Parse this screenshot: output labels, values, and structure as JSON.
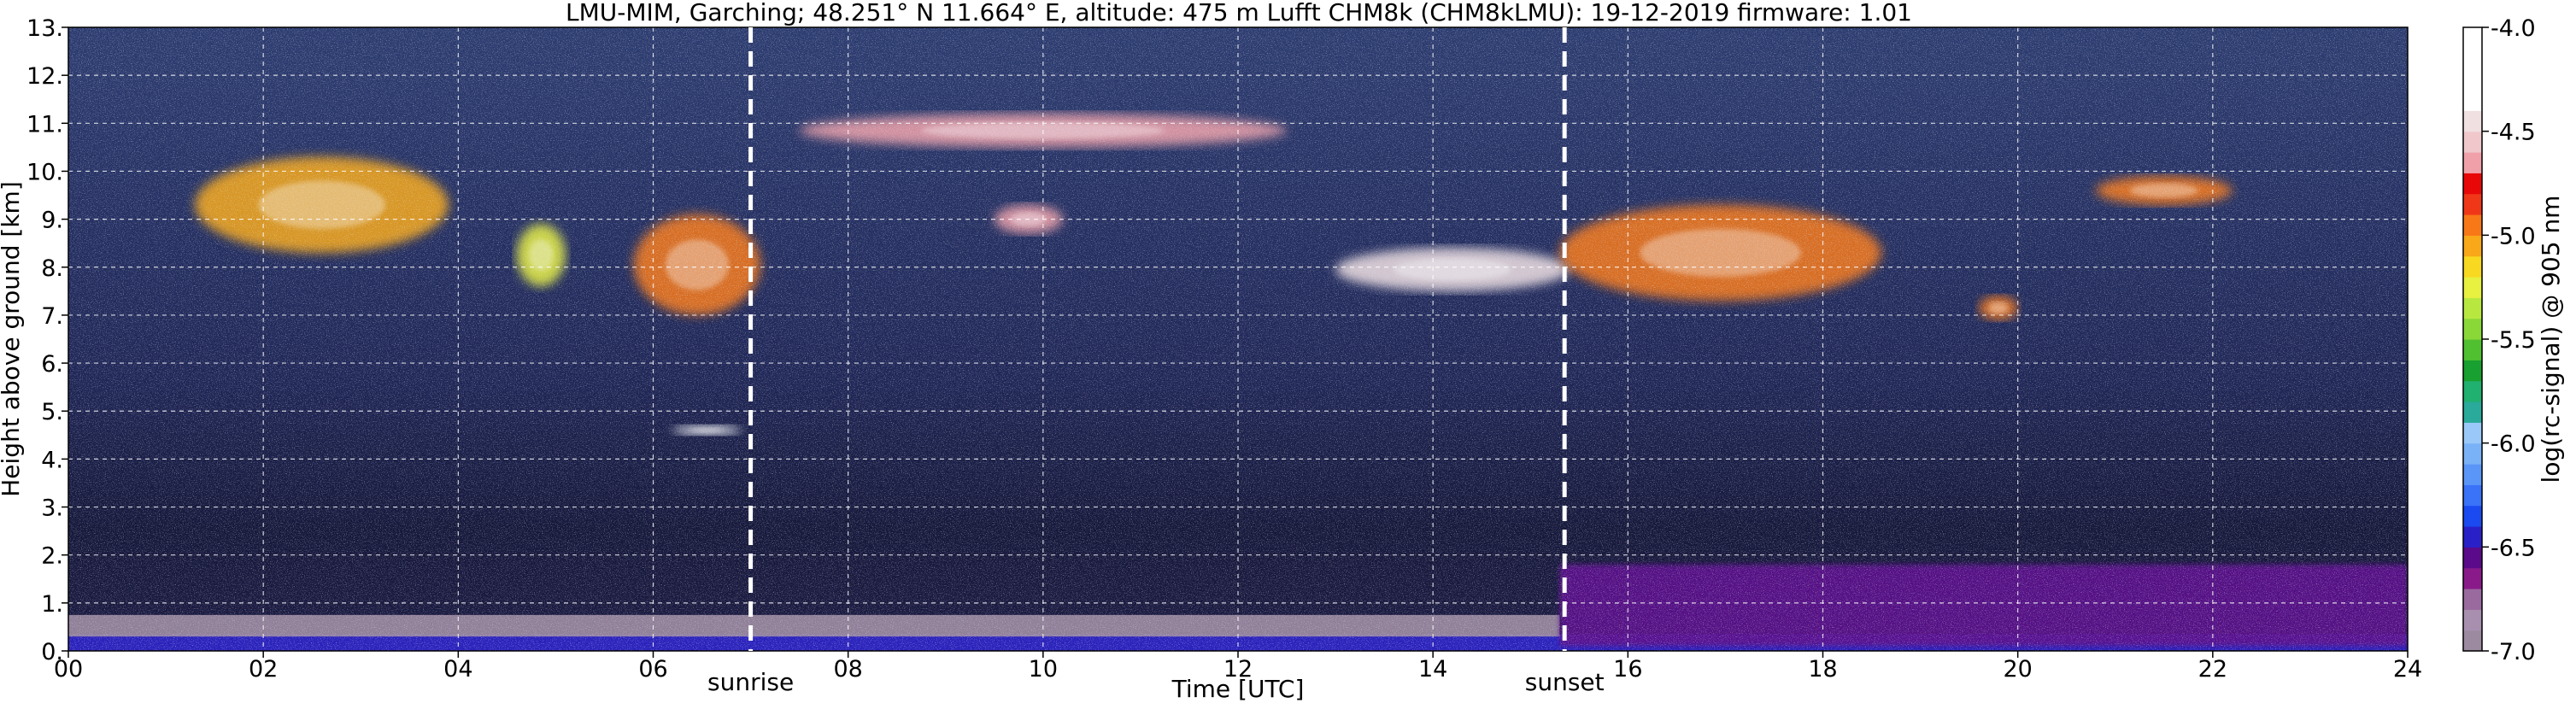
{
  "chart_data": {
    "type": "heatmap",
    "title": "LMU-MIM, Garching; 48.251° N 11.664° E, altitude: 475 m    Lufft CHM8k (CHM8kLMU): 19-12-2019    firmware: 1.01",
    "xlabel": "Time [UTC]",
    "ylabel": "Height above ground [km]",
    "xlim": [
      0,
      24
    ],
    "ylim": [
      0,
      13
    ],
    "x_ticks": [
      {
        "value": 0,
        "label": "00"
      },
      {
        "value": 2,
        "label": "02"
      },
      {
        "value": 4,
        "label": "04"
      },
      {
        "value": 6,
        "label": "06"
      },
      {
        "value": 8,
        "label": "08"
      },
      {
        "value": 10,
        "label": "10"
      },
      {
        "value": 12,
        "label": "12"
      },
      {
        "value": 14,
        "label": "14"
      },
      {
        "value": 16,
        "label": "16"
      },
      {
        "value": 18,
        "label": "18"
      },
      {
        "value": 20,
        "label": "20"
      },
      {
        "value": 22,
        "label": "22"
      },
      {
        "value": 24,
        "label": "24"
      }
    ],
    "y_ticks": [
      {
        "value": 0,
        "label": "0."
      },
      {
        "value": 1,
        "label": "1."
      },
      {
        "value": 2,
        "label": "2."
      },
      {
        "value": 3,
        "label": "3."
      },
      {
        "value": 4,
        "label": "4."
      },
      {
        "value": 5,
        "label": "5."
      },
      {
        "value": 6,
        "label": "6."
      },
      {
        "value": 7,
        "label": "7."
      },
      {
        "value": 8,
        "label": "8."
      },
      {
        "value": 9,
        "label": "9."
      },
      {
        "value": 10,
        "label": "10."
      },
      {
        "value": 11,
        "label": "11."
      },
      {
        "value": 12,
        "label": "12."
      },
      {
        "value": 13,
        "label": "13."
      }
    ],
    "grid": true,
    "annotations": [
      {
        "x": 7.0,
        "label": "sunrise",
        "line": "dashed"
      },
      {
        "x": 15.35,
        "label": "sunset",
        "line": "dashed"
      }
    ],
    "colorbar": {
      "label": "log(rc-signal) @ 905 nm",
      "range": [
        -7.0,
        -4.0
      ],
      "ticks": [
        {
          "value": -4.0,
          "label": "-4.0"
        },
        {
          "value": -4.5,
          "label": "-4.5"
        },
        {
          "value": -5.0,
          "label": "-5.0"
        },
        {
          "value": -5.5,
          "label": "-5.5"
        },
        {
          "value": -6.0,
          "label": "-6.0"
        },
        {
          "value": -6.5,
          "label": "-6.5"
        },
        {
          "value": -7.0,
          "label": "-7.0"
        }
      ],
      "colors": [
        "#9c8aa0",
        "#a88fb0",
        "#9a6a9e",
        "#8a1a8a",
        "#5a0a8a",
        "#2a20c8",
        "#1a4af0",
        "#3a72f8",
        "#5a96f8",
        "#7ab2f8",
        "#9ac8f8",
        "#2aaa9a",
        "#20b070",
        "#18a030",
        "#50c030",
        "#8ad838",
        "#b8e840",
        "#e8f040",
        "#f8d820",
        "#f8a818",
        "#f87818",
        "#f03818",
        "#e80808",
        "#f0a0a8",
        "#f0c8cc",
        "#f0e0e2",
        "#ffffff",
        "#ffffff",
        "#ffffff",
        "#ffffff"
      ]
    },
    "features": [
      {
        "kind": "aerosol_layer",
        "t0": 0,
        "t1": 24,
        "h0": 0.0,
        "h1": 0.35,
        "level": -6.4
      },
      {
        "kind": "aerosol_layer",
        "t0": 0,
        "t1": 15.3,
        "h0": 0.3,
        "h1": 0.75,
        "level": -6.9
      },
      {
        "kind": "boundary_layer",
        "t0": 15.3,
        "t1": 24,
        "h0": 0.1,
        "h1": 1.8,
        "level": -6.6
      },
      {
        "kind": "cloud",
        "t0": 1.3,
        "t1": 3.9,
        "h0": 8.3,
        "h1": 10.3,
        "level": -5.1
      },
      {
        "kind": "cloud",
        "t0": 4.6,
        "t1": 5.1,
        "h0": 7.6,
        "h1": 8.9,
        "level": -5.3
      },
      {
        "kind": "cloud",
        "t0": 5.8,
        "t1": 7.1,
        "h0": 7.0,
        "h1": 9.1,
        "level": -5.0
      },
      {
        "kind": "cloud",
        "t0": 13.0,
        "t1": 15.4,
        "h0": 7.5,
        "h1": 8.4,
        "level": -4.5
      },
      {
        "kind": "cloud",
        "t0": 15.3,
        "t1": 18.6,
        "h0": 7.3,
        "h1": 9.3,
        "level": -5.0
      },
      {
        "kind": "cloud",
        "t0": 20.8,
        "t1": 22.2,
        "h0": 9.3,
        "h1": 9.9,
        "level": -5.0
      },
      {
        "kind": "cloud",
        "t0": 19.6,
        "t1": 20.0,
        "h0": 6.9,
        "h1": 7.4,
        "level": -5.0
      },
      {
        "kind": "cirrus",
        "t0": 7.5,
        "t1": 12.5,
        "h0": 10.5,
        "h1": 11.2,
        "level": -4.7
      },
      {
        "kind": "cirrus",
        "t0": 9.5,
        "t1": 10.2,
        "h0": 8.7,
        "h1": 9.3,
        "level": -4.7
      },
      {
        "kind": "cloud",
        "t0": 6.2,
        "t1": 6.9,
        "h0": 4.5,
        "h1": 4.7,
        "level": -4.2
      }
    ]
  }
}
